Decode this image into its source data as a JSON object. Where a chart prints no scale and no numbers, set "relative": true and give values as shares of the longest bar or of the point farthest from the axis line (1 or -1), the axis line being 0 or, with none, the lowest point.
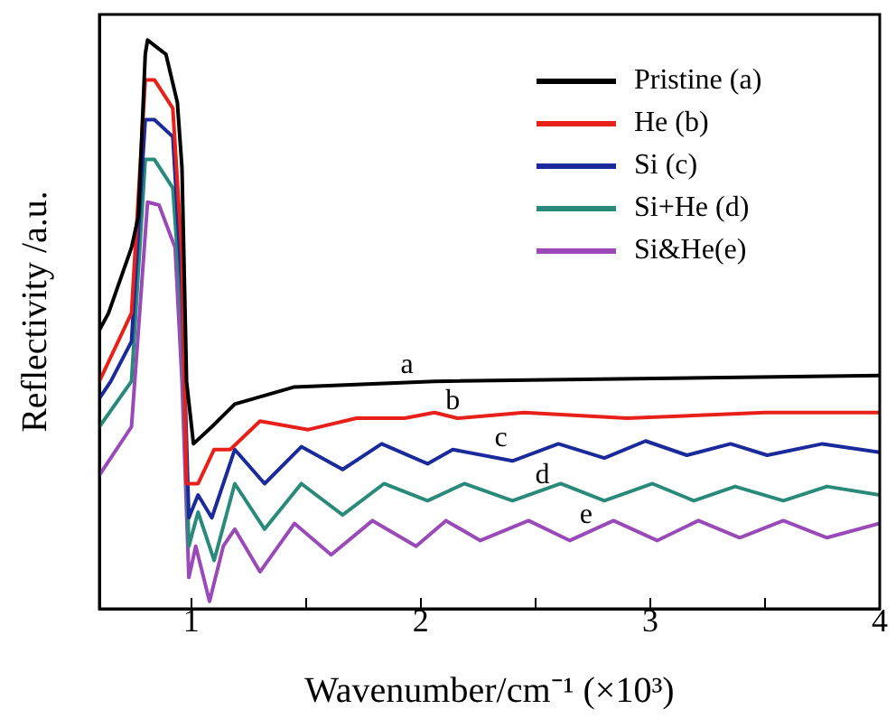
{
  "chart_data": {
    "type": "line",
    "xlabel": "Wavenumber/cm⁻¹ (×10³)",
    "ylabel": "Reflectivity /a.u.",
    "relative": true,
    "xlim": [
      0.6,
      4
    ],
    "xticks": [
      1,
      {
        "value": 1.5,
        "label": null
      },
      2,
      {
        "value": 2.5,
        "label": null
      },
      3,
      {
        "value": 3.5,
        "label": null
      },
      4
    ],
    "tick_labels": "x",
    "grid": false,
    "legend": "top right",
    "marker": "none",
    "line_style": "solid",
    "series": [
      {
        "name": "Pristine (a)",
        "color": "#000000",
        "x": [
          0.6,
          0.64,
          0.74,
          0.77,
          0.8,
          0.81,
          0.89,
          0.94,
          0.96,
          0.98,
          1.01,
          1.09,
          1.19,
          1.45,
          2.06,
          4.0
        ],
        "values": [
          0.49,
          0.52,
          0.635,
          0.69,
          0.975,
          1.0,
          0.975,
          0.89,
          0.775,
          0.4,
          0.29,
          0.32,
          0.36,
          0.39,
          0.4,
          0.41
        ]
      },
      {
        "name": "He (b)",
        "color": "#e8201a",
        "x": [
          0.6,
          0.74,
          0.8,
          0.84,
          0.92,
          0.96,
          0.98,
          1.03,
          1.1,
          1.17,
          1.3,
          1.51,
          1.72,
          1.93,
          2.06,
          2.16,
          2.45,
          2.9,
          3.5,
          4.0
        ],
        "values": [
          0.4,
          0.52,
          0.93,
          0.93,
          0.88,
          0.62,
          0.22,
          0.22,
          0.28,
          0.28,
          0.33,
          0.315,
          0.335,
          0.335,
          0.345,
          0.335,
          0.345,
          0.335,
          0.345,
          0.345
        ]
      },
      {
        "name": "Si (c)",
        "color": "#1a2a9a",
        "x": [
          0.6,
          0.65,
          0.74,
          0.8,
          0.84,
          0.92,
          0.96,
          0.99,
          1.03,
          1.09,
          1.19,
          1.32,
          1.48,
          1.66,
          1.83,
          2.03,
          2.14,
          2.4,
          2.6,
          2.8,
          2.98,
          3.16,
          3.35,
          3.51,
          3.75,
          4.0
        ],
        "values": [
          0.37,
          0.4,
          0.47,
          0.86,
          0.86,
          0.83,
          0.56,
          0.16,
          0.2,
          0.16,
          0.28,
          0.22,
          0.285,
          0.245,
          0.29,
          0.255,
          0.28,
          0.26,
          0.29,
          0.265,
          0.295,
          0.27,
          0.29,
          0.27,
          0.29,
          0.275
        ]
      },
      {
        "name": "Si+He (d)",
        "color": "#2a8a7a",
        "x": [
          0.6,
          0.74,
          0.8,
          0.84,
          0.92,
          0.96,
          0.99,
          1.03,
          1.1,
          1.19,
          1.32,
          1.48,
          1.66,
          1.84,
          2.03,
          2.19,
          2.4,
          2.61,
          2.8,
          3.01,
          3.19,
          3.37,
          3.58,
          3.77,
          4.0
        ],
        "values": [
          0.32,
          0.4,
          0.79,
          0.79,
          0.74,
          0.51,
          0.11,
          0.17,
          0.085,
          0.22,
          0.14,
          0.22,
          0.165,
          0.22,
          0.19,
          0.22,
          0.19,
          0.22,
          0.19,
          0.22,
          0.19,
          0.215,
          0.19,
          0.215,
          0.2
        ]
      },
      {
        "name": "Si&He(e)",
        "color": "#9a4ab8",
        "x": [
          0.6,
          0.74,
          0.81,
          0.86,
          0.93,
          0.96,
          0.99,
          1.02,
          1.08,
          1.14,
          1.19,
          1.3,
          1.45,
          1.61,
          1.79,
          1.98,
          2.11,
          2.26,
          2.47,
          2.65,
          2.84,
          3.03,
          3.21,
          3.39,
          3.58,
          3.77,
          4.0
        ],
        "values": [
          0.235,
          0.32,
          0.715,
          0.71,
          0.635,
          0.4,
          0.055,
          0.11,
          0.013,
          0.11,
          0.14,
          0.065,
          0.15,
          0.095,
          0.155,
          0.11,
          0.155,
          0.12,
          0.155,
          0.12,
          0.155,
          0.12,
          0.155,
          0.125,
          0.155,
          0.125,
          0.15
        ]
      }
    ],
    "annotations": [
      {
        "text": "a",
        "x": 1.94,
        "y": 0.4
      },
      {
        "text": "b",
        "x": 2.14,
        "y": 0.335
      },
      {
        "text": "c",
        "x": 2.35,
        "y": 0.27
      },
      {
        "text": "d",
        "x": 2.53,
        "y": 0.205
      },
      {
        "text": "e",
        "x": 2.72,
        "y": 0.135
      }
    ]
  }
}
